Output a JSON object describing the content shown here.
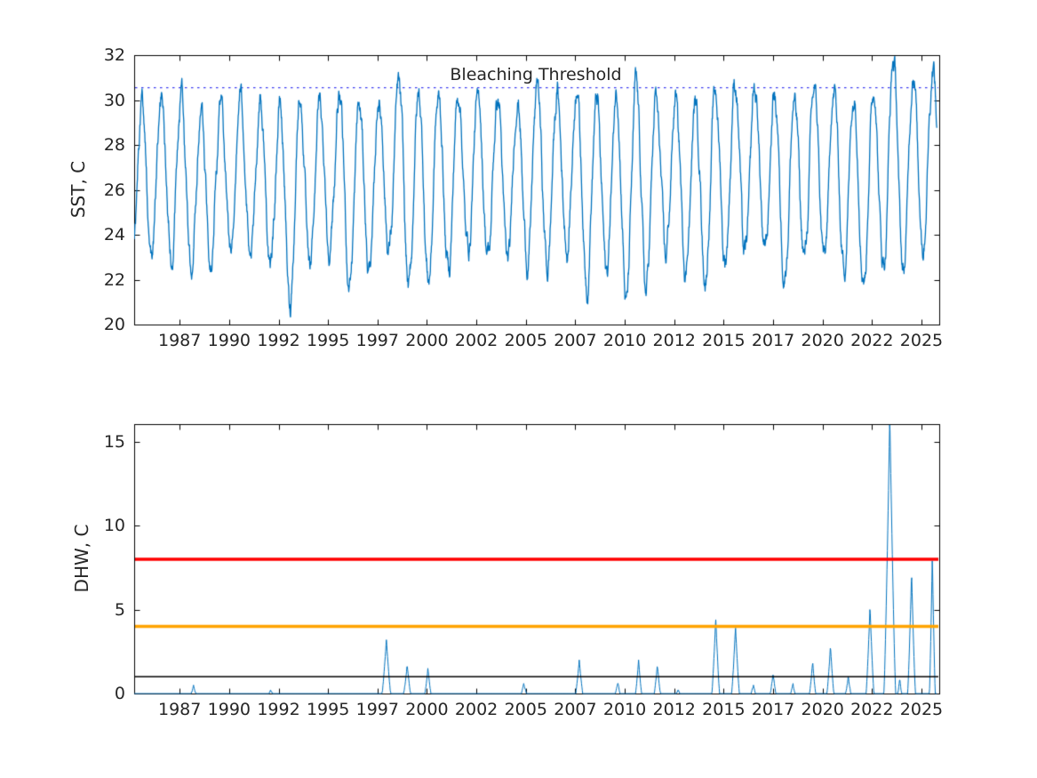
{
  "figure": {
    "background": "#ffffff",
    "axis_color": "#000000",
    "text_color": "#262626"
  },
  "chart_data": [
    {
      "id": "sst",
      "type": "line",
      "title": "",
      "xlabel": "",
      "ylabel": "SST, C",
      "ylim": [
        20,
        32
      ],
      "xlim": [
        1985.2,
        2025.9
      ],
      "yticks": [
        20,
        22,
        24,
        26,
        28,
        30,
        32
      ],
      "xtick_positions": [
        1987.5,
        1990,
        1992.5,
        1995,
        1997.5,
        2000,
        2002.5,
        2005,
        2007.5,
        2010,
        2012.5,
        2015,
        2017.5,
        2020,
        2022.5,
        2025
      ],
      "xtick_labels": [
        "1987",
        "1990",
        "1992",
        "1995",
        "1997",
        "2000",
        "2002",
        "2005",
        "2007",
        "2010",
        "2012",
        "2015",
        "2017",
        "2020",
        "2022",
        "2025"
      ],
      "grid": false,
      "legend": "none",
      "line_color": "#0072BD",
      "annotation": {
        "text": "Bleaching Threshold",
        "x": 2005.5,
        "y": 31.0
      },
      "threshold": {
        "value": 30.55,
        "color": "#3c3cf0",
        "style": "dotted"
      },
      "series_seasonal": {
        "description": "Daily SST seasonal cycle; per-year summer maxima and winter minima read from plot",
        "start": 1985.2,
        "end": 2025.78,
        "start_value": 24.1,
        "trough_phase": 0.08,
        "peak_phase": 0.58,
        "years": [
          1985,
          1986,
          1987,
          1988,
          1989,
          1990,
          1991,
          1992,
          1993,
          1994,
          1995,
          1996,
          1997,
          1998,
          1999,
          2000,
          2001,
          2002,
          2003,
          2004,
          2005,
          2006,
          2007,
          2008,
          2009,
          2010,
          2011,
          2012,
          2013,
          2014,
          2015,
          2016,
          2017,
          2018,
          2019,
          2020,
          2021,
          2022,
          2023,
          2024,
          2025,
          2026
        ],
        "summer_max": [
          30.0,
          30.0,
          30.1,
          29.6,
          29.9,
          30.2,
          30.0,
          29.7,
          30.1,
          29.9,
          30.1,
          29.8,
          30.0,
          30.8,
          30.3,
          30.2,
          30.3,
          30.2,
          30.1,
          30.0,
          30.7,
          30.2,
          30.6,
          30.0,
          30.3,
          30.7,
          30.0,
          30.0,
          29.8,
          30.4,
          30.8,
          30.5,
          30.3,
          30.0,
          30.6,
          30.5,
          30.2,
          30.5,
          31.8,
          31.2,
          31.5
        ],
        "winter_min": [
          23.0,
          23.2,
          23.1,
          22.6,
          22.6,
          23.3,
          22.7,
          22.6,
          20.9,
          22.4,
          23.3,
          21.8,
          22.4,
          23.3,
          21.6,
          21.9,
          22.4,
          23.3,
          23.0,
          22.8,
          22.7,
          22.5,
          23.3,
          21.7,
          22.4,
          21.1,
          21.6,
          23.2,
          22.5,
          22.0,
          22.8,
          23.1,
          23.2,
          22.1,
          23.0,
          22.9,
          22.5,
          21.9,
          22.6,
          22.3,
          23.5,
          23.0
        ]
      }
    },
    {
      "id": "dhw",
      "type": "line",
      "title": "",
      "xlabel": "",
      "ylabel": "DHW, C",
      "ylim": [
        0,
        16.05
      ],
      "xlim": [
        1985.2,
        2025.9
      ],
      "yticks": [
        0,
        5,
        10,
        15
      ],
      "xtick_positions": [
        1987.5,
        1990,
        1992.5,
        1995,
        1997.5,
        2000,
        2002.5,
        2005,
        2007.5,
        2010,
        2012.5,
        2015,
        2017.5,
        2020,
        2022.5,
        2025
      ],
      "xtick_labels": [
        "1987",
        "1990",
        "1992",
        "1995",
        "1997",
        "2000",
        "2002",
        "2005",
        "2007",
        "2010",
        "2012",
        "2015",
        "2017",
        "2020",
        "2022",
        "2025"
      ],
      "grid": false,
      "legend": "none",
      "line_color": "#0072BD",
      "thresholds": [
        {
          "value": 1,
          "color": "#000000",
          "width": 1.5
        },
        {
          "value": 4,
          "color": "#ffa400",
          "width": 3.5
        },
        {
          "value": 8,
          "color": "#ff0000",
          "width": 3.5
        }
      ],
      "events": [
        {
          "t": 1988.2,
          "peak": 0.5,
          "w": 0.12
        },
        {
          "t": 1992.1,
          "peak": 0.2,
          "w": 0.1
        },
        {
          "t": 1997.95,
          "peak": 3.2,
          "w": 0.22
        },
        {
          "t": 1999.0,
          "peak": 1.7,
          "w": 0.18
        },
        {
          "t": 2000.05,
          "peak": 1.5,
          "w": 0.16
        },
        {
          "t": 2004.9,
          "peak": 0.6,
          "w": 0.14
        },
        {
          "t": 2007.7,
          "peak": 2.0,
          "w": 0.18
        },
        {
          "t": 2009.65,
          "peak": 0.7,
          "w": 0.12
        },
        {
          "t": 2010.7,
          "peak": 2.0,
          "w": 0.16
        },
        {
          "t": 2011.65,
          "peak": 1.7,
          "w": 0.16
        },
        {
          "t": 2012.7,
          "peak": 0.2,
          "w": 0.1
        },
        {
          "t": 2014.6,
          "peak": 4.5,
          "w": 0.2
        },
        {
          "t": 2015.6,
          "peak": 4.0,
          "w": 0.2
        },
        {
          "t": 2016.5,
          "peak": 0.5,
          "w": 0.12
        },
        {
          "t": 2017.5,
          "peak": 1.2,
          "w": 0.15
        },
        {
          "t": 2018.5,
          "peak": 0.6,
          "w": 0.12
        },
        {
          "t": 2019.5,
          "peak": 1.9,
          "w": 0.16
        },
        {
          "t": 2020.4,
          "peak": 2.8,
          "w": 0.18
        },
        {
          "t": 2021.3,
          "peak": 1.0,
          "w": 0.14
        },
        {
          "t": 2022.4,
          "peak": 5.2,
          "w": 0.2
        },
        {
          "t": 2023.4,
          "peak": 16.5,
          "w": 0.3
        },
        {
          "t": 2023.9,
          "peak": 0.9,
          "w": 0.1
        },
        {
          "t": 2024.5,
          "peak": 7.2,
          "w": 0.2
        },
        {
          "t": 2025.55,
          "peak": 8.2,
          "w": 0.15
        }
      ]
    }
  ]
}
